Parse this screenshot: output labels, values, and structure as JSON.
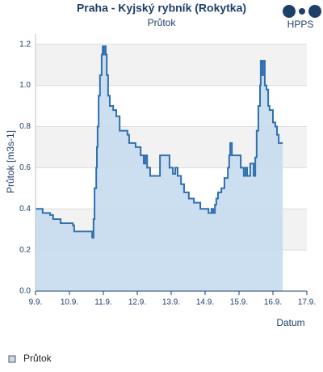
{
  "chart_data": {
    "type": "line",
    "title": "Praha - Kyjský rybník (Rokytka)",
    "subtitle": "Průtok",
    "logo_text": "HPPS",
    "x_label": "Datum",
    "y_label": "Průtok [m3s-1]",
    "drawstyle": "steps-post",
    "fill": true,
    "xlim": [
      0,
      8
    ],
    "xticks": [
      {
        "value": 0,
        "label": "9.9."
      },
      {
        "value": 1,
        "label": "10.9."
      },
      {
        "value": 2,
        "label": "11.9."
      },
      {
        "value": 3,
        "label": "12.9."
      },
      {
        "value": 4,
        "label": "13.9."
      },
      {
        "value": 5,
        "label": "14.9."
      },
      {
        "value": 6,
        "label": "15.9."
      },
      {
        "value": 7,
        "label": "16.9."
      },
      {
        "value": 8,
        "label": "17.9."
      }
    ],
    "ylim": [
      0,
      1.25
    ],
    "yticks": [
      {
        "value": 0,
        "label": "0.0"
      },
      0.2,
      0.4,
      0.6,
      0.8,
      {
        "value": 1,
        "label": "1.0"
      },
      1.2
    ],
    "grid": true,
    "legend": "bottom-left",
    "series": [
      {
        "name": "Průtok",
        "color": "#2f6fb0",
        "fill_color": "#c6dbef",
        "x": [
          0,
          0.21,
          0.43,
          0.52,
          0.74,
          1.1,
          1.14,
          1.67,
          1.71,
          1.74,
          1.79,
          1.81,
          1.83,
          1.86,
          1.9,
          1.95,
          1.98,
          2.0,
          2.02,
          2.07,
          2.1,
          2.14,
          2.19,
          2.29,
          2.38,
          2.48,
          2.67,
          2.71,
          2.76,
          2.95,
          3.1,
          3.19,
          3.24,
          3.29,
          3.38,
          3.62,
          3.67,
          3.9,
          3.95,
          4.05,
          4.12,
          4.19,
          4.29,
          4.38,
          4.52,
          4.67,
          4.86,
          5.0,
          5.1,
          5.19,
          5.24,
          5.29,
          5.33,
          5.38,
          5.48,
          5.57,
          5.67,
          5.71,
          5.74,
          5.79,
          6.0,
          6.05,
          6.14,
          6.19,
          6.24,
          6.33,
          6.43,
          6.48,
          6.52,
          6.57,
          6.62,
          6.64,
          6.69,
          6.71,
          6.76,
          6.81,
          6.86,
          6.9,
          7.0,
          7.07,
          7.12,
          7.17,
          7.29
        ],
        "values": [
          0.4,
          0.38,
          0.37,
          0.35,
          0.33,
          0.32,
          0.29,
          0.26,
          0.35,
          0.5,
          0.6,
          0.7,
          0.8,
          0.95,
          1.05,
          1.15,
          1.19,
          1.15,
          1.19,
          1.15,
          1.05,
          0.95,
          0.9,
          0.88,
          0.85,
          0.78,
          0.78,
          0.76,
          0.72,
          0.7,
          0.66,
          0.62,
          0.66,
          0.6,
          0.56,
          0.56,
          0.66,
          0.66,
          0.6,
          0.57,
          0.6,
          0.56,
          0.52,
          0.48,
          0.45,
          0.43,
          0.4,
          0.4,
          0.38,
          0.4,
          0.38,
          0.42,
          0.45,
          0.48,
          0.5,
          0.55,
          0.6,
          0.66,
          0.72,
          0.66,
          0.66,
          0.6,
          0.56,
          0.6,
          0.56,
          0.62,
          0.56,
          0.65,
          0.78,
          0.9,
          1.0,
          1.12,
          1.05,
          1.12,
          1.0,
          0.98,
          0.9,
          0.88,
          0.82,
          0.8,
          0.76,
          0.72,
          0.72
        ]
      }
    ]
  }
}
